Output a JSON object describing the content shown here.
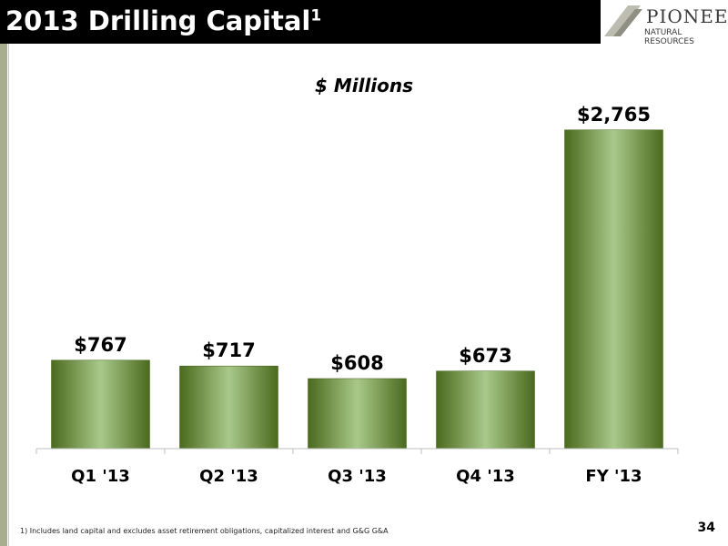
{
  "header": {
    "title": "2013 Drilling Capital",
    "title_sup": "1",
    "logo_name": "PIONEER",
    "logo_sub": "NATURAL RESOURCES"
  },
  "subtitle": "$ Millions",
  "footnote": "1)  Includes land capital and excludes asset retirement obligations, capitalized interest and G&G G&A",
  "page_number": "34",
  "colors": {
    "title_bar": "#000000",
    "bar_dark": "#4a6a1e",
    "bar_light": "#a9c98a"
  },
  "chart_data": {
    "type": "bar",
    "title": "$ Millions",
    "categories": [
      "Q1 '13",
      "Q2 '13",
      "Q3 '13",
      "Q4 '13",
      "FY '13"
    ],
    "values": [
      767,
      717,
      608,
      673,
      2765
    ],
    "data_labels": [
      "$767",
      "$717",
      "$608",
      "$673",
      "$2,765"
    ],
    "ylim": [
      0,
      3000
    ],
    "grid": false,
    "legend": "none"
  }
}
